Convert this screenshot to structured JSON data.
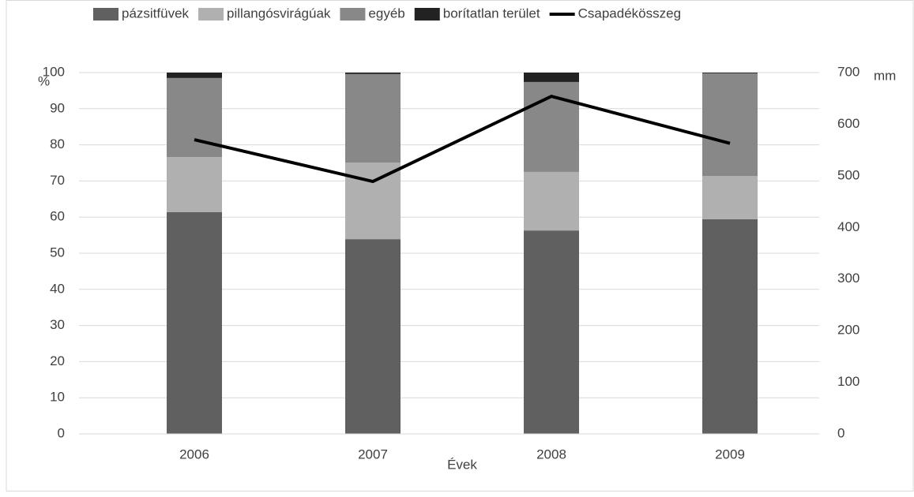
{
  "chart_data": {
    "type": "bar",
    "stacked": true,
    "categories": [
      "2006",
      "2007",
      "2008",
      "2009"
    ],
    "series": [
      {
        "name": "pázsitfüvek",
        "color": "#606060",
        "values": [
          61.4,
          53.9,
          56.3,
          59.4
        ]
      },
      {
        "name": "pillangósvirágúak",
        "color": "#b0b0b0",
        "values": [
          15.2,
          21.2,
          16.2,
          12.0
        ]
      },
      {
        "name": "egyéb",
        "color": "#888888",
        "values": [
          21.9,
          24.5,
          24.9,
          28.4
        ]
      },
      {
        "name": "borítatlan terület",
        "color": "#222222",
        "values": [
          1.5,
          0.4,
          2.6,
          0.2
        ]
      },
      {
        "name": "Csapadékösszeg",
        "color": "#000000",
        "type": "line",
        "axis": "y2",
        "values": [
          570,
          489,
          654,
          563
        ]
      }
    ],
    "ylabel": "%",
    "y2label": "mm",
    "xlabel": "Évek",
    "ylim": [
      0,
      100
    ],
    "yticks": [
      0,
      10,
      20,
      30,
      40,
      50,
      60,
      70,
      80,
      90,
      100
    ],
    "y2lim": [
      0,
      700
    ],
    "y2ticks": [
      0,
      100,
      200,
      300,
      400,
      500,
      600,
      700
    ],
    "grid": true,
    "legend": "top"
  }
}
